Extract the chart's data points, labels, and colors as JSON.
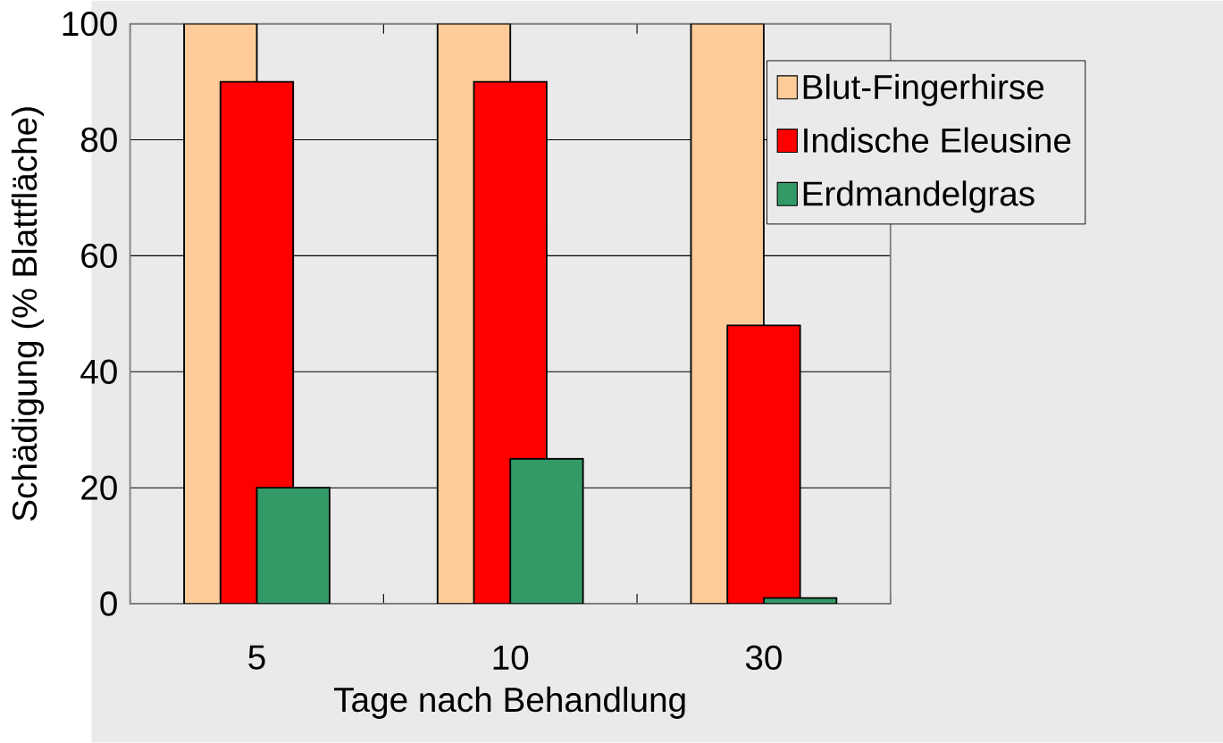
{
  "chart_data": {
    "type": "bar",
    "xlabel": "Tage nach Behandlung",
    "ylabel": "Schädigung (% Blattfläche)",
    "categories": [
      "5",
      "10",
      "30"
    ],
    "series": [
      {
        "name": "Blut-Fingerhirse",
        "color": "#ffcc99",
        "values": [
          100,
          100,
          100
        ]
      },
      {
        "name": "Indische Eleusine",
        "color": "#ff0000",
        "values": [
          90,
          90,
          48
        ]
      },
      {
        "name": "Erdmandelgras",
        "color": "#339966",
        "values": [
          20,
          25,
          1
        ]
      }
    ],
    "ylim": [
      0,
      100
    ],
    "yticks": [
      0,
      20,
      40,
      60,
      80,
      100
    ],
    "grid": "y",
    "legend": "top right"
  }
}
